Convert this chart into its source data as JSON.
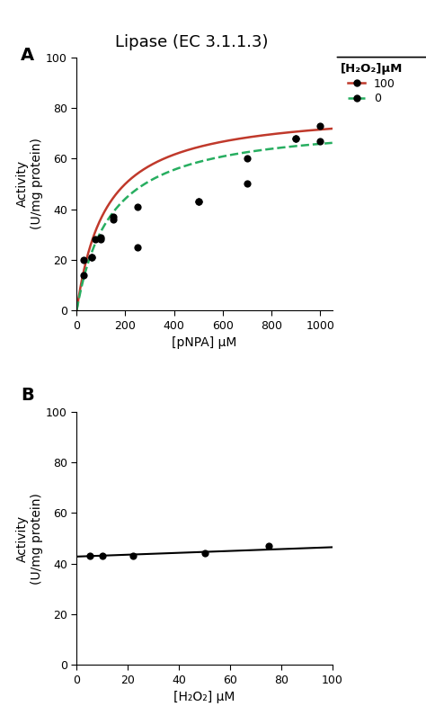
{
  "title": "Lipase (EC 3.1.1.3)",
  "panel_A_label": "A",
  "panel_B_label": "B",
  "panel_A": {
    "xlabel": "[pNPA] μM",
    "ylabel": "Activity\n(U/mg protein)",
    "xlim": [
      0,
      1050
    ],
    "ylim": [
      0,
      100
    ],
    "xticks": [
      0,
      200,
      400,
      600,
      800,
      1000
    ],
    "yticks": [
      0,
      20,
      40,
      60,
      80,
      100
    ],
    "scatter_x1": [
      30,
      60,
      75,
      100,
      150,
      250,
      500,
      700,
      900,
      1000
    ],
    "scatter_y1": [
      20,
      21,
      28,
      29,
      37,
      41,
      43,
      50,
      68,
      73
    ],
    "scatter_x2": [
      30,
      60,
      100,
      150,
      250,
      500,
      700,
      900,
      1000
    ],
    "scatter_y2": [
      14,
      21,
      28,
      36,
      25,
      43,
      60,
      68,
      67
    ],
    "Vmax_red": 80.0,
    "Km_red": 120.0,
    "Vmax_green": 75.0,
    "Km_green": 140.0,
    "curve_color_red": "#c0392b",
    "curve_color_green": "#27ae60",
    "scatter_color": "#000000",
    "scatter_size": 35,
    "legend_title": "[H₂O₂]μM",
    "legend_labels": [
      "100",
      "0"
    ],
    "legend_colors": [
      "#c0392b",
      "#27ae60"
    ]
  },
  "panel_B": {
    "xlabel": "[H₂O₂] μM",
    "ylabel": "Activity\n(U/mg protein)",
    "xlim": [
      0,
      100
    ],
    "ylim": [
      0,
      100
    ],
    "xticks": [
      0,
      20,
      40,
      60,
      80,
      100
    ],
    "yticks": [
      0,
      20,
      40,
      60,
      80,
      100
    ],
    "scatter_x": [
      5,
      10,
      22,
      50,
      75
    ],
    "scatter_y": [
      43,
      43,
      43,
      44,
      47
    ],
    "line_x": [
      0,
      100
    ],
    "line_y": [
      42.8,
      46.5
    ],
    "line_color": "#000000",
    "scatter_color": "#000000",
    "scatter_size": 35
  }
}
